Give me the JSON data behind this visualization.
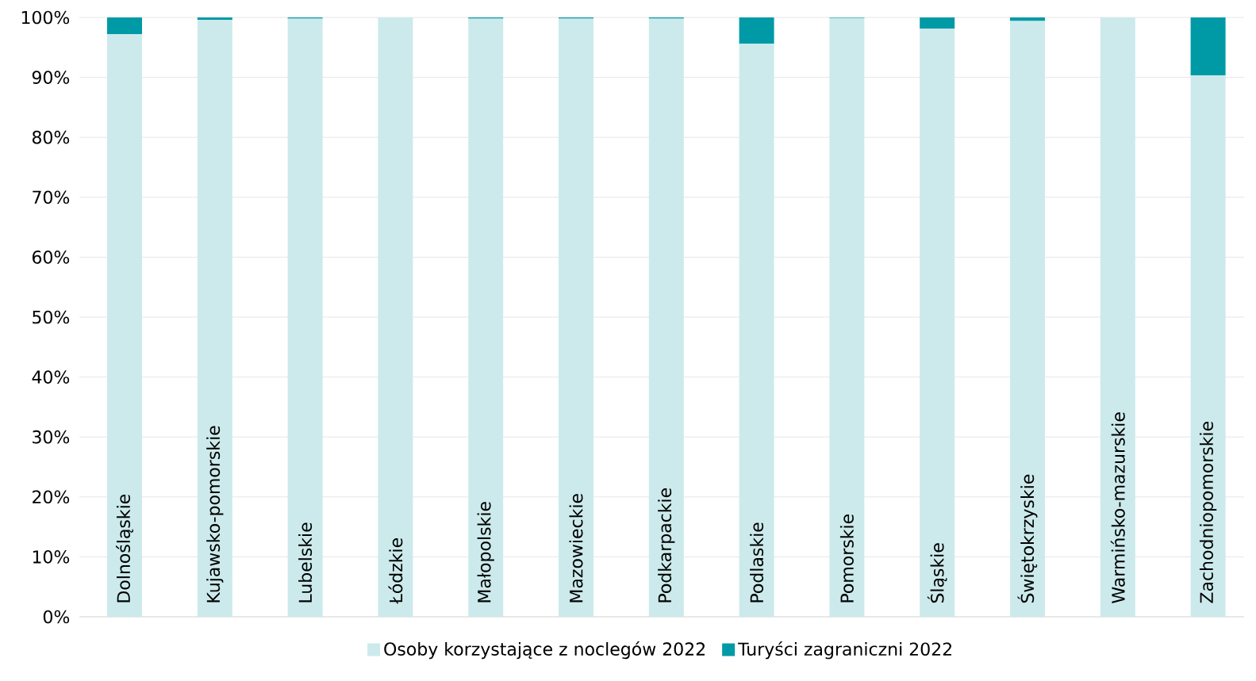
{
  "chart_data": {
    "type": "bar",
    "stacked": true,
    "categories": [
      "Dolnośląskie",
      "Kujawsko-pomorskie",
      "Lubelskie",
      "Łódzkie",
      "Małopolskie",
      "Mazowieckie",
      "Podkarpackie",
      "Podlaskie",
      "Pomorskie",
      "Śląskie",
      "Świętokrzyskie",
      "Warmińsko-mazurskie",
      "Zachodniopomorskie"
    ],
    "series": [
      {
        "name": "Osoby korzystające z noclegów 2022",
        "color": "#cceaec",
        "values": [
          97.2,
          99.6,
          99.8,
          100,
          99.8,
          99.8,
          99.8,
          95.6,
          99.9,
          98.1,
          99.4,
          100,
          90.3
        ]
      },
      {
        "name": "Turyści zagraniczni 2022",
        "color": "#009aa6",
        "values": [
          2.8,
          0.4,
          0.2,
          0,
          0.2,
          0.2,
          0.2,
          4.4,
          0.1,
          1.9,
          0.6,
          0,
          9.7
        ]
      }
    ],
    "ylim": [
      0,
      100
    ],
    "yticks": [
      {
        "value": 0,
        "label": "0%"
      },
      {
        "value": 10,
        "label": "10%"
      },
      {
        "value": 20,
        "label": "20%"
      },
      {
        "value": 30,
        "label": "30%"
      },
      {
        "value": 40,
        "label": "40%"
      },
      {
        "value": 50,
        "label": "50%"
      },
      {
        "value": 60,
        "label": "60%"
      },
      {
        "value": 70,
        "label": "70%"
      },
      {
        "value": 80,
        "label": "80%"
      },
      {
        "value": 90,
        "label": "90%"
      },
      {
        "value": 100,
        "label": "100%"
      }
    ],
    "grid": "y",
    "legend": "bottom"
  }
}
